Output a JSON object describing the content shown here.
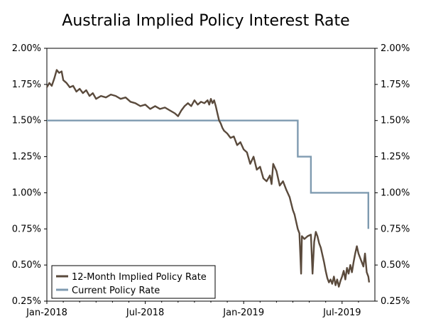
{
  "chart_data": {
    "type": "line",
    "title": "Australia Implied Policy Interest Rate",
    "xlabel": "",
    "ylabel": "",
    "x_ticks": [
      "Jan-2018",
      "Jul-2018",
      "Jan-2019",
      "Jul-2019"
    ],
    "y_ticks": [
      "0.25%",
      "0.50%",
      "0.75%",
      "1.00%",
      "1.25%",
      "1.50%",
      "1.75%",
      "2.00%"
    ],
    "ylim": [
      0.25,
      2.0
    ],
    "xlim_months": [
      0,
      20
    ],
    "legend_position": "bottom-left",
    "series": [
      {
        "name": "12-Month Implied Policy Rate",
        "color": "#5a4a3c",
        "points": [
          [
            0.0,
            1.73
          ],
          [
            0.15,
            1.76
          ],
          [
            0.3,
            1.74
          ],
          [
            0.45,
            1.79
          ],
          [
            0.6,
            1.85
          ],
          [
            0.75,
            1.83
          ],
          [
            0.9,
            1.84
          ],
          [
            1.0,
            1.78
          ],
          [
            1.2,
            1.76
          ],
          [
            1.4,
            1.73
          ],
          [
            1.6,
            1.74
          ],
          [
            1.8,
            1.7
          ],
          [
            2.0,
            1.72
          ],
          [
            2.2,
            1.69
          ],
          [
            2.4,
            1.71
          ],
          [
            2.6,
            1.67
          ],
          [
            2.8,
            1.69
          ],
          [
            3.0,
            1.65
          ],
          [
            3.3,
            1.67
          ],
          [
            3.6,
            1.66
          ],
          [
            3.9,
            1.68
          ],
          [
            4.2,
            1.67
          ],
          [
            4.5,
            1.65
          ],
          [
            4.8,
            1.66
          ],
          [
            5.1,
            1.63
          ],
          [
            5.4,
            1.62
          ],
          [
            5.7,
            1.6
          ],
          [
            6.0,
            1.61
          ],
          [
            6.3,
            1.58
          ],
          [
            6.6,
            1.6
          ],
          [
            6.9,
            1.58
          ],
          [
            7.2,
            1.59
          ],
          [
            7.5,
            1.57
          ],
          [
            7.8,
            1.55
          ],
          [
            8.0,
            1.53
          ],
          [
            8.2,
            1.57
          ],
          [
            8.4,
            1.6
          ],
          [
            8.6,
            1.62
          ],
          [
            8.8,
            1.6
          ],
          [
            9.0,
            1.64
          ],
          [
            9.2,
            1.61
          ],
          [
            9.4,
            1.63
          ],
          [
            9.6,
            1.62
          ],
          [
            9.8,
            1.64
          ],
          [
            9.9,
            1.61
          ],
          [
            10.0,
            1.65
          ],
          [
            10.1,
            1.62
          ],
          [
            10.2,
            1.64
          ],
          [
            10.3,
            1.6
          ],
          [
            10.4,
            1.55
          ],
          [
            10.5,
            1.5
          ],
          [
            10.6,
            1.48
          ],
          [
            10.7,
            1.45
          ],
          [
            10.8,
            1.43
          ],
          [
            11.0,
            1.41
          ],
          [
            11.2,
            1.38
          ],
          [
            11.4,
            1.39
          ],
          [
            11.6,
            1.33
          ],
          [
            11.8,
            1.35
          ],
          [
            12.0,
            1.3
          ],
          [
            12.2,
            1.28
          ],
          [
            12.4,
            1.2
          ],
          [
            12.6,
            1.25
          ],
          [
            12.8,
            1.16
          ],
          [
            13.0,
            1.18
          ],
          [
            13.2,
            1.1
          ],
          [
            13.4,
            1.08
          ],
          [
            13.6,
            1.12
          ],
          [
            13.7,
            1.06
          ],
          [
            13.8,
            1.2
          ],
          [
            14.0,
            1.15
          ],
          [
            14.2,
            1.05
          ],
          [
            14.4,
            1.08
          ],
          [
            14.6,
            1.02
          ],
          [
            14.8,
            0.97
          ],
          [
            15.0,
            0.88
          ],
          [
            15.1,
            0.85
          ],
          [
            15.2,
            0.8
          ],
          [
            15.3,
            0.75
          ],
          [
            15.4,
            0.72
          ],
          [
            15.5,
            0.44
          ],
          [
            15.55,
            0.7
          ],
          [
            15.7,
            0.68
          ],
          [
            15.9,
            0.7
          ],
          [
            16.1,
            0.71
          ],
          [
            16.2,
            0.44
          ],
          [
            16.3,
            0.66
          ],
          [
            16.4,
            0.73
          ],
          [
            16.5,
            0.7
          ],
          [
            16.6,
            0.65
          ],
          [
            16.7,
            0.62
          ],
          [
            16.8,
            0.57
          ],
          [
            16.9,
            0.52
          ],
          [
            17.0,
            0.46
          ],
          [
            17.1,
            0.41
          ],
          [
            17.2,
            0.38
          ],
          [
            17.3,
            0.4
          ],
          [
            17.4,
            0.37
          ],
          [
            17.5,
            0.42
          ],
          [
            17.6,
            0.36
          ],
          [
            17.7,
            0.4
          ],
          [
            17.8,
            0.35
          ],
          [
            17.9,
            0.39
          ],
          [
            18.0,
            0.42
          ],
          [
            18.1,
            0.46
          ],
          [
            18.2,
            0.4
          ],
          [
            18.3,
            0.48
          ],
          [
            18.4,
            0.44
          ],
          [
            18.5,
            0.5
          ],
          [
            18.6,
            0.45
          ],
          [
            18.7,
            0.52
          ],
          [
            18.8,
            0.58
          ],
          [
            18.9,
            0.63
          ],
          [
            19.0,
            0.58
          ],
          [
            19.1,
            0.55
          ],
          [
            19.2,
            0.52
          ],
          [
            19.3,
            0.49
          ],
          [
            19.4,
            0.58
          ],
          [
            19.5,
            0.45
          ],
          [
            19.6,
            0.42
          ],
          [
            19.65,
            0.38
          ]
        ]
      },
      {
        "name": "Current Policy Rate",
        "color": "#7f9bb0",
        "points": [
          [
            0.0,
            1.5
          ],
          [
            15.3,
            1.5
          ],
          [
            15.3,
            1.25
          ],
          [
            16.1,
            1.25
          ],
          [
            16.1,
            1.0
          ],
          [
            19.6,
            1.0
          ],
          [
            19.6,
            0.75
          ]
        ]
      }
    ]
  }
}
